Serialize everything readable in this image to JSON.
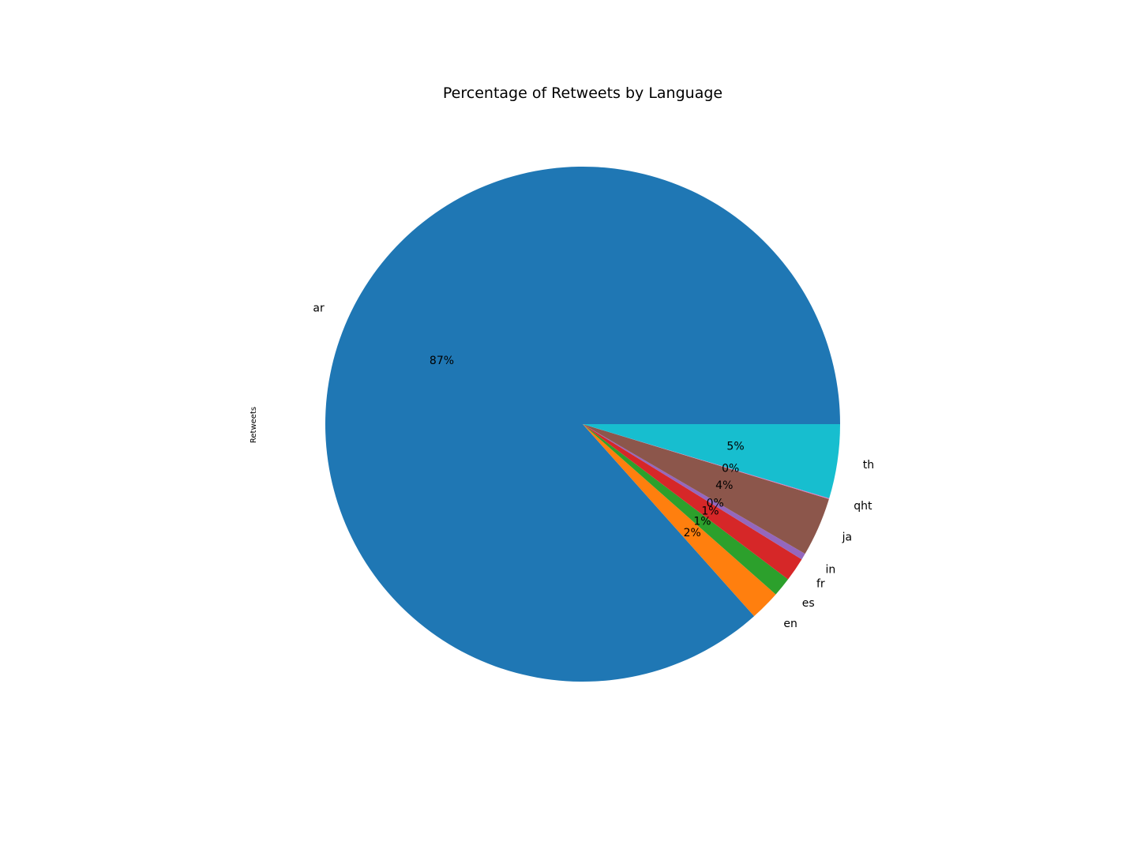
{
  "chart_data": {
    "type": "pie",
    "title": "Percentage of Retweets by Language",
    "ylabel": "Retweets",
    "slices": [
      {
        "label": "ar",
        "value": 86.6,
        "pct_text": "87%",
        "color": "#1f77b4"
      },
      {
        "label": "en",
        "value": 1.9,
        "pct_text": "2%",
        "color": "#ff7f0e"
      },
      {
        "label": "es",
        "value": 1.2,
        "pct_text": "1%",
        "color": "#2ca02c"
      },
      {
        "label": "fr",
        "value": 1.5,
        "pct_text": "1%",
        "color": "#d62728"
      },
      {
        "label": "in",
        "value": 0.4,
        "pct_text": "0%",
        "color": "#9467bd"
      },
      {
        "label": "ja",
        "value": 3.7,
        "pct_text": "4%",
        "color": "#8c564b"
      },
      {
        "label": "qht",
        "value": 0.05,
        "pct_text": "0%",
        "color": "#e377c2"
      },
      {
        "label": "th",
        "value": 4.65,
        "pct_text": "5%",
        "color": "#17becf"
      }
    ]
  }
}
